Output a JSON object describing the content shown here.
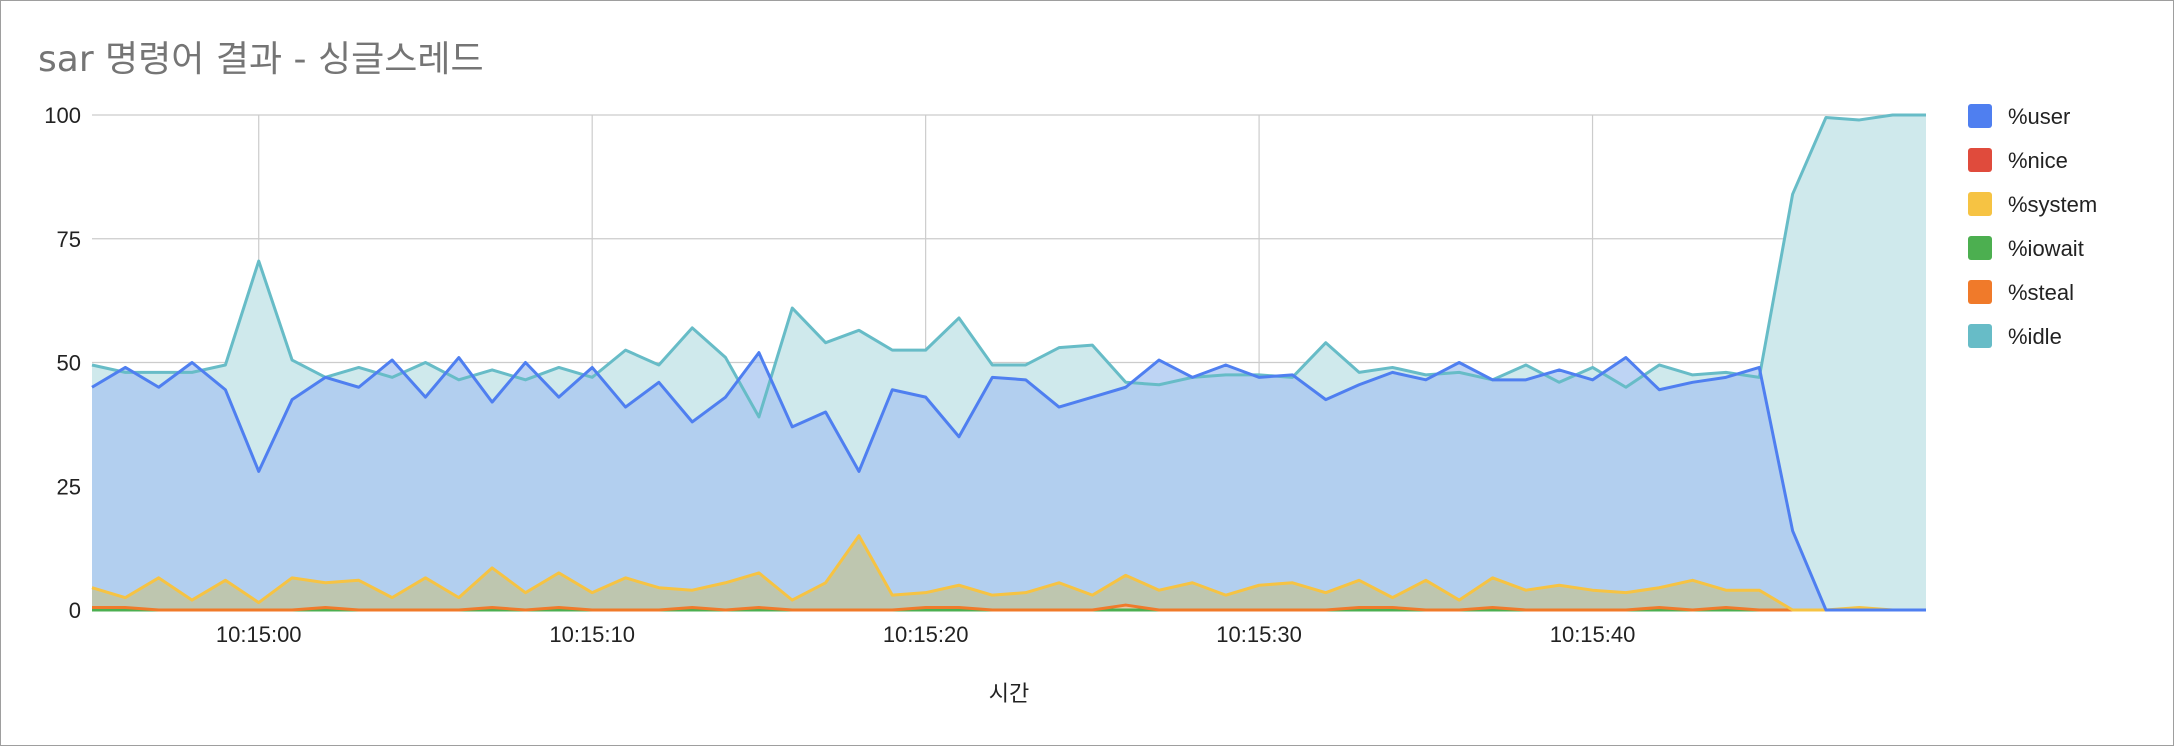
{
  "chart_data": {
    "type": "area",
    "title": "sar 명령어 결과 - 싱글스레드",
    "xlabel": "시간",
    "ylabel": "",
    "ylim": [
      0,
      100
    ],
    "y_ticks": [
      0,
      25,
      50,
      75,
      100
    ],
    "x_tick_labels": [
      "10:15:00",
      "10:15:10",
      "10:15:20",
      "10:15:30",
      "10:15:40"
    ],
    "x_tick_index": [
      5,
      15,
      25,
      35,
      45
    ],
    "legend_position": "right",
    "grid": true,
    "categories": [
      "10:14:55",
      "10:14:56",
      "10:14:57",
      "10:14:58",
      "10:14:59",
      "10:15:00",
      "10:15:01",
      "10:15:02",
      "10:15:03",
      "10:15:04",
      "10:15:05",
      "10:15:06",
      "10:15:07",
      "10:15:08",
      "10:15:09",
      "10:15:10",
      "10:15:11",
      "10:15:12",
      "10:15:13",
      "10:15:14",
      "10:15:15",
      "10:15:16",
      "10:15:17",
      "10:15:18",
      "10:15:19",
      "10:15:20",
      "10:15:21",
      "10:15:22",
      "10:15:23",
      "10:15:24",
      "10:15:25",
      "10:15:26",
      "10:15:27",
      "10:15:28",
      "10:15:29",
      "10:15:30",
      "10:15:31",
      "10:15:32",
      "10:15:33",
      "10:15:34",
      "10:15:35",
      "10:15:36",
      "10:15:37",
      "10:15:38",
      "10:15:39",
      "10:15:40",
      "10:15:41",
      "10:15:42",
      "10:15:43",
      "10:15:44",
      "10:15:45",
      "10:15:46",
      "10:15:47",
      "10:15:48",
      "10:15:49",
      "10:15:50"
    ],
    "series": [
      {
        "name": "%user",
        "color": "#4f7ff0",
        "fill": "#a8c6f0",
        "values": [
          45,
          49,
          45,
          50,
          44.5,
          28,
          42.5,
          47,
          45,
          50.5,
          43,
          51,
          42,
          50,
          43,
          49,
          41,
          46,
          38,
          43,
          52,
          37,
          40,
          28,
          44.5,
          43,
          35,
          47,
          46.5,
          41,
          43,
          45,
          50.5,
          47,
          49.5,
          47,
          47.5,
          42.5,
          45.5,
          48,
          46.5,
          50,
          46.5,
          46.5,
          48.5,
          46.5,
          51,
          44.5,
          46,
          47,
          49,
          16,
          0,
          0,
          0,
          0
        ]
      },
      {
        "name": "%nice",
        "color": "#e04b3c",
        "fill": "#f2c0ba",
        "values": [
          0,
          0,
          0,
          0,
          0,
          0,
          0,
          0,
          0,
          0,
          0,
          0,
          0,
          0,
          0,
          0,
          0,
          0,
          0,
          0,
          0,
          0,
          0,
          0,
          0,
          0,
          0,
          0,
          0,
          0,
          0,
          0,
          0,
          0,
          0,
          0,
          0,
          0,
          0,
          0,
          0,
          0,
          0,
          0,
          0,
          0,
          0,
          0,
          0,
          0,
          0,
          0,
          0,
          0,
          0,
          0
        ]
      },
      {
        "name": "%system",
        "color": "#f6c343",
        "fill": "#c2c39a",
        "values": [
          4.5,
          2.5,
          6.5,
          2,
          6,
          1.5,
          6.5,
          5.5,
          6,
          2.5,
          6.5,
          2.5,
          8.5,
          3.5,
          7.5,
          3.5,
          6.5,
          4.5,
          4,
          5.5,
          7.5,
          2,
          5.5,
          15,
          3,
          3.5,
          5,
          3,
          3.5,
          5.5,
          3,
          7,
          4,
          5.5,
          3,
          5,
          5.5,
          3.5,
          6,
          2.5,
          6,
          2,
          6.5,
          4,
          5,
          4,
          3.5,
          4.5,
          6,
          4,
          4,
          0,
          0,
          0.5,
          0,
          0
        ]
      },
      {
        "name": "%iowait",
        "color": "#4caf50",
        "fill": "#b5d9b7",
        "values": [
          0,
          0,
          0,
          0,
          0,
          0,
          0,
          0,
          0,
          0,
          0,
          0,
          0,
          0,
          0,
          0,
          0,
          0,
          0,
          0,
          0,
          0,
          0,
          0,
          0,
          0,
          0,
          0,
          0,
          0,
          0,
          0,
          0,
          0,
          0,
          0,
          0,
          0,
          0,
          0,
          0,
          0,
          0,
          0,
          0,
          0,
          0,
          0,
          0,
          0,
          0,
          0,
          0,
          0,
          0,
          0
        ]
      },
      {
        "name": "%steal",
        "color": "#f07a2a",
        "fill": "#f5c8a6",
        "values": [
          0.5,
          0.5,
          0,
          0,
          0,
          0,
          0,
          0.5,
          0,
          0,
          0,
          0,
          0.5,
          0,
          0.5,
          0,
          0,
          0,
          0.5,
          0,
          0.5,
          0,
          0,
          0,
          0,
          0.5,
          0.5,
          0,
          0,
          0,
          0,
          1,
          0,
          0,
          0,
          0,
          0,
          0,
          0.5,
          0.5,
          0,
          0,
          0.5,
          0,
          0,
          0,
          0,
          0.5,
          0,
          0.5,
          0,
          0,
          0,
          0,
          0,
          0
        ]
      },
      {
        "name": "%idle",
        "color": "#67bcc7",
        "fill": "#cfe9ec",
        "values": [
          49.5,
          48,
          48,
          48,
          49.5,
          70.5,
          50.5,
          47,
          49,
          47,
          50,
          46.5,
          48.5,
          46.5,
          49,
          47,
          52.5,
          49.5,
          57,
          51,
          39,
          61,
          54,
          56.5,
          52.5,
          52.5,
          59,
          49.5,
          49.5,
          53,
          53.5,
          46,
          45.5,
          47,
          47.5,
          47.5,
          47,
          54,
          48,
          49,
          47.5,
          48,
          46.5,
          49.5,
          46,
          49,
          45,
          49.5,
          47.5,
          48,
          47,
          84,
          99.5,
          99,
          100,
          100
        ]
      }
    ]
  }
}
